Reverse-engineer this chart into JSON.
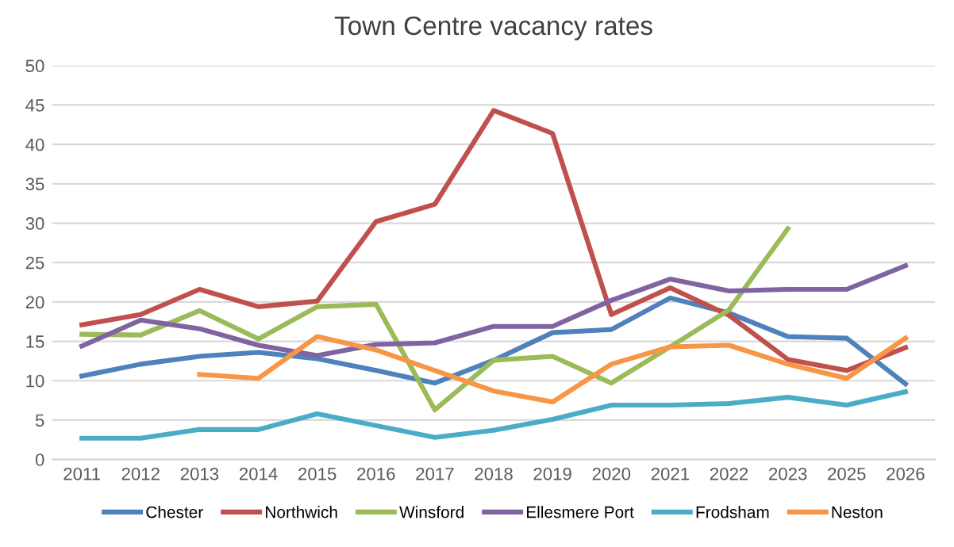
{
  "chart_data": {
    "type": "line",
    "title": "Town Centre vacancy rates",
    "categories": [
      "2011",
      "2012",
      "2013",
      "2014",
      "2015",
      "2016",
      "2017",
      "2018",
      "2019",
      "2020",
      "2021",
      "2022",
      "2023",
      "2025",
      "2026"
    ],
    "series": [
      {
        "name": "Chester",
        "color": "#4f81bd",
        "values": [
          10.6,
          12.1,
          13.1,
          13.6,
          12.8,
          11.3,
          9.7,
          12.6,
          16.1,
          16.5,
          20.5,
          18.6,
          15.6,
          15.4,
          9.6
        ]
      },
      {
        "name": "Northwich",
        "color": "#c0504d",
        "values": [
          17.1,
          18.4,
          21.6,
          19.4,
          20.1,
          30.2,
          32.4,
          44.3,
          41.4,
          18.4,
          21.8,
          18.3,
          12.7,
          11.3,
          14.2
        ]
      },
      {
        "name": "Winsford",
        "color": "#9bbb59",
        "values": [
          15.9,
          15.8,
          18.9,
          15.3,
          19.4,
          19.7,
          6.3,
          12.6,
          13.1,
          9.7,
          14.3,
          19.0,
          29.3,
          null,
          null
        ]
      },
      {
        "name": "Ellesmere Port",
        "color": "#8064a2",
        "values": [
          14.4,
          17.7,
          16.6,
          14.5,
          13.2,
          14.6,
          14.8,
          16.9,
          16.9,
          20.2,
          22.9,
          21.4,
          21.6,
          21.6,
          24.6
        ]
      },
      {
        "name": "Frodsham",
        "color": "#4bacc6",
        "values": [
          2.7,
          2.7,
          3.8,
          3.8,
          5.8,
          4.3,
          2.8,
          3.7,
          5.1,
          6.9,
          6.9,
          7.1,
          7.9,
          6.9,
          8.6
        ]
      },
      {
        "name": "Neston",
        "color": "#f79646",
        "values": [
          null,
          null,
          10.8,
          10.3,
          15.6,
          13.9,
          11.3,
          8.7,
          7.3,
          12.1,
          14.3,
          14.5,
          12.1,
          10.3,
          15.4
        ]
      }
    ],
    "ylim": [
      0,
      50
    ],
    "yticks": [
      0,
      5,
      10,
      15,
      20,
      25,
      30,
      35,
      40,
      45,
      50
    ],
    "grid": "y",
    "legend": "bottom",
    "marker": "none",
    "line_style": "solid"
  }
}
